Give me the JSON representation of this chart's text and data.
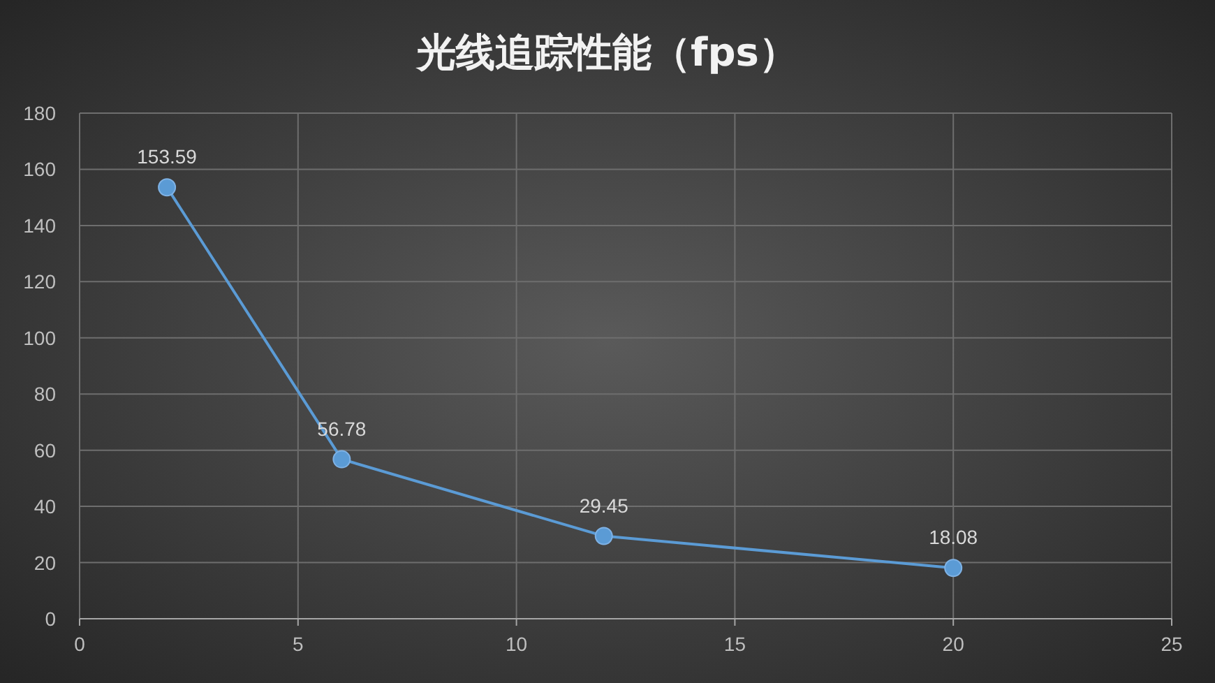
{
  "chart_data": {
    "type": "line",
    "title": "光线追踪性能（fps）",
    "x": [
      2,
      6,
      12,
      20
    ],
    "series": [
      {
        "color": "#5b9bd5",
        "values": [
          153.59,
          56.78,
          29.45,
          18.08
        ]
      }
    ],
    "xlim": [
      0,
      25
    ],
    "xticks": [
      0,
      5,
      10,
      15,
      20,
      25
    ],
    "ylim": [
      0,
      180
    ],
    "yticks": [
      0,
      20,
      40,
      60,
      80,
      100,
      120,
      140,
      160,
      180
    ],
    "grid": true,
    "marker": "circle",
    "line_style": "solid",
    "data_labels": true
  }
}
